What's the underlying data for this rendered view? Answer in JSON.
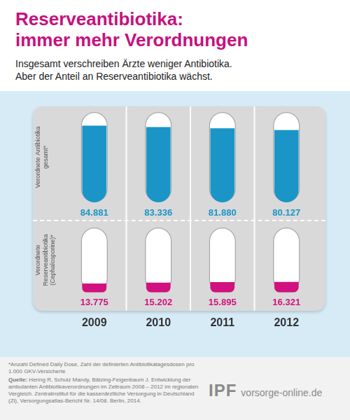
{
  "title": "Reserveantibiotika:\nimmer mehr Verordnungen",
  "subtitle": "Insgesamt verschreiben Ärzte weniger Antibiotika.\nAber der Anteil an Reserveantibiotika wächst.",
  "chart_data": [
    {
      "type": "bar",
      "ylabel": "Verordnete Antibiotika gesamt*",
      "categories": [
        null,
        null,
        null,
        null
      ],
      "values": [
        84881,
        83336,
        81880,
        80127
      ],
      "value_labels": [
        "84.881",
        "83.336",
        "81.880",
        "80.127"
      ],
      "color": "#1b95c8",
      "ylim": [
        0,
        100000
      ],
      "grid": false,
      "data_labels": true,
      "tick_labels": false
    },
    {
      "type": "bar",
      "ylabel": "Verordnete Reserveantibiotika (Cephalosporine)*",
      "categories": [
        "2009",
        "2010",
        "2011",
        "2012"
      ],
      "values": [
        13775,
        15202,
        15895,
        16321
      ],
      "value_labels": [
        "13.775",
        "15.202",
        "15.895",
        "16.321"
      ],
      "color": "#d1117f",
      "ylim": [
        0,
        100000
      ],
      "grid": false,
      "data_labels": true,
      "tick_labels": "x"
    }
  ],
  "footnote": "*Anzahl Defined Daily Dose, Zahl der definierten Antibiotikatagesdosen pro 1.000 GKV-Versicherte",
  "source_label": "Quelle:",
  "source": "Hering R, Schulz Mandy, Bätzing-Feigenbaum J. Entwicklung der ambulanten Antibiotikaverordnungen im Zeitraum 2008 – 2012 im regionalen Vergleich. Zentralinstitut für die kassenärztliche Versorgung in Deutschland (Zi), Versorgungsatlas-Bericht Nr. 14/08. Berlin, 2014.",
  "logo": "IPF",
  "website": "vorsorge-online.de"
}
